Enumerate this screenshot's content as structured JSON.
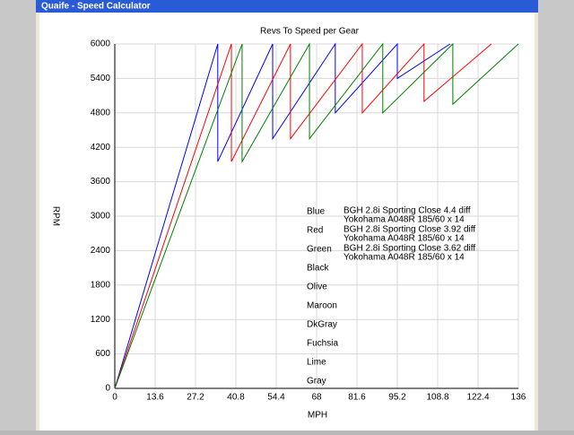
{
  "window": {
    "title": "Quaife - Speed Calculator"
  },
  "chart_data": {
    "type": "line",
    "title": "Revs To Speed per Gear",
    "x_label": "MPH",
    "y_label": "RPM",
    "xlim": [
      0,
      136
    ],
    "ylim": [
      0,
      6000
    ],
    "xticks": [
      0,
      13.6,
      27.2,
      40.8,
      54.4,
      68,
      81.6,
      95.2,
      108.8,
      122.4,
      136
    ],
    "yticks": [
      0,
      600,
      1200,
      1800,
      2400,
      3000,
      3600,
      4200,
      4800,
      5400,
      6000
    ],
    "grid": true,
    "series": [
      {
        "name": "Blue",
        "color": "#0000ff",
        "description": [
          "BGH 2.8i Sporting Close 4.4 diff",
          "Yokohama A048R 185/60 x 14"
        ],
        "x": [
          0,
          34.7,
          34.7,
          53.2,
          53.2,
          74.3,
          74.3,
          95.2,
          95.2,
          113
        ],
        "values": [
          0,
          6000,
          3950,
          6000,
          4350,
          6000,
          4800,
          6000,
          5400,
          6000
        ]
      },
      {
        "name": "Red",
        "color": "#ff0000",
        "description": [
          "BGH 2.8i Sporting Close 3.92 diff",
          "Yokohama A048R 185/60 x 14"
        ],
        "x": [
          0,
          39.3,
          39.3,
          59.2,
          59.2,
          83.4,
          83.4,
          104.2,
          104.2,
          126.9
        ],
        "values": [
          0,
          6000,
          3950,
          6000,
          4350,
          6000,
          4800,
          6000,
          5000,
          6000
        ]
      },
      {
        "name": "Green",
        "color": "#008000",
        "description": [
          "BGH 2.8i Sporting Close 3.62 diff",
          "Yokohama A048R 185/60 x 14"
        ],
        "x": [
          0,
          42.9,
          42.9,
          65.6,
          65.6,
          90.3,
          90.3,
          113.9,
          113.9,
          136
        ],
        "values": [
          0,
          6000,
          3950,
          6000,
          4350,
          6000,
          4800,
          6000,
          4950,
          6000
        ]
      }
    ],
    "unused_legend": [
      "Black",
      "Olive",
      "Maroon",
      "DkGray",
      "Fuchsia",
      "Lime",
      "Gray"
    ]
  }
}
